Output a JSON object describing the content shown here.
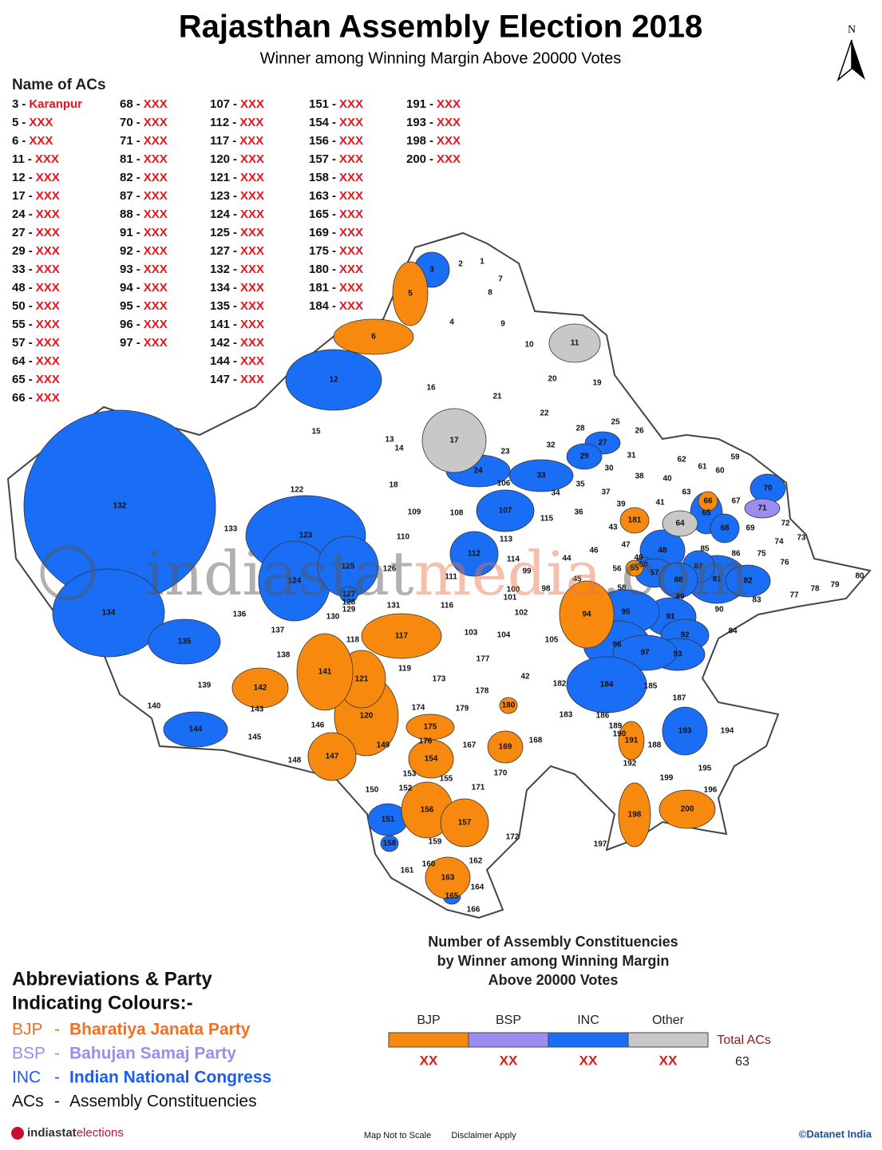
{
  "header": {
    "title": "Rajasthan Assembly Election 2018",
    "subtitle": "Winner among Winning Margin Above 20000 Votes",
    "north": "N"
  },
  "ac_list": {
    "heading": "Name of ACs",
    "separator": "-",
    "columns": [
      [
        {
          "no": 3,
          "name": "Karanpur"
        },
        {
          "no": 5,
          "name": "XXX"
        },
        {
          "no": 6,
          "name": "XXX"
        },
        {
          "no": 11,
          "name": "XXX"
        },
        {
          "no": 12,
          "name": "XXX"
        },
        {
          "no": 17,
          "name": "XXX"
        },
        {
          "no": 24,
          "name": "XXX"
        },
        {
          "no": 27,
          "name": "XXX"
        },
        {
          "no": 29,
          "name": "XXX"
        },
        {
          "no": 33,
          "name": "XXX"
        },
        {
          "no": 48,
          "name": "XXX"
        },
        {
          "no": 50,
          "name": "XXX"
        },
        {
          "no": 55,
          "name": "XXX"
        },
        {
          "no": 57,
          "name": "XXX"
        },
        {
          "no": 64,
          "name": "XXX"
        },
        {
          "no": 65,
          "name": "XXX"
        },
        {
          "no": 66,
          "name": "XXX"
        }
      ],
      [
        {
          "no": 68,
          "name": "XXX"
        },
        {
          "no": 70,
          "name": "XXX"
        },
        {
          "no": 71,
          "name": "XXX"
        },
        {
          "no": 81,
          "name": "XXX"
        },
        {
          "no": 82,
          "name": "XXX"
        },
        {
          "no": 87,
          "name": "XXX"
        },
        {
          "no": 88,
          "name": "XXX"
        },
        {
          "no": 91,
          "name": "XXX"
        },
        {
          "no": 92,
          "name": "XXX"
        },
        {
          "no": 93,
          "name": "XXX"
        },
        {
          "no": 94,
          "name": "XXX"
        },
        {
          "no": 95,
          "name": "XXX"
        },
        {
          "no": 96,
          "name": "XXX"
        },
        {
          "no": 97,
          "name": "XXX"
        }
      ],
      [
        {
          "no": 107,
          "name": "XXX"
        },
        {
          "no": 112,
          "name": "XXX"
        },
        {
          "no": 117,
          "name": "XXX"
        },
        {
          "no": 120,
          "name": "XXX"
        },
        {
          "no": 121,
          "name": "XXX"
        },
        {
          "no": 123,
          "name": "XXX"
        },
        {
          "no": 124,
          "name": "XXX"
        },
        {
          "no": 125,
          "name": "XXX"
        },
        {
          "no": 127,
          "name": "XXX"
        },
        {
          "no": 132,
          "name": "XXX"
        },
        {
          "no": 134,
          "name": "XXX"
        },
        {
          "no": 135,
          "name": "XXX"
        },
        {
          "no": 141,
          "name": "XXX"
        },
        {
          "no": 142,
          "name": "XXX"
        },
        {
          "no": 144,
          "name": "XXX"
        },
        {
          "no": 147,
          "name": "XXX"
        }
      ],
      [
        {
          "no": 151,
          "name": "XXX"
        },
        {
          "no": 154,
          "name": "XXX"
        },
        {
          "no": 156,
          "name": "XXX"
        },
        {
          "no": 157,
          "name": "XXX"
        },
        {
          "no": 158,
          "name": "XXX"
        },
        {
          "no": 163,
          "name": "XXX"
        },
        {
          "no": 165,
          "name": "XXX"
        },
        {
          "no": 169,
          "name": "XXX"
        },
        {
          "no": 175,
          "name": "XXX"
        },
        {
          "no": 180,
          "name": "XXX"
        },
        {
          "no": 181,
          "name": "XXX"
        },
        {
          "no": 184,
          "name": "XXX"
        }
      ],
      [
        {
          "no": 191,
          "name": "XXX"
        },
        {
          "no": 193,
          "name": "XXX"
        },
        {
          "no": 198,
          "name": "XXX"
        },
        {
          "no": 200,
          "name": "XXX"
        }
      ]
    ]
  },
  "map": {
    "party_colors": {
      "BJP": "#f7890e",
      "BSP": "#9b8cf0",
      "INC": "#1a6ef5",
      "Other": "#c8c8c8"
    },
    "winners": [
      {
        "label": 3,
        "party": "INC"
      },
      {
        "label": 12,
        "party": "INC"
      },
      {
        "label": 24,
        "party": "INC"
      },
      {
        "label": 27,
        "party": "INC"
      },
      {
        "label": 29,
        "party": "INC"
      },
      {
        "label": 33,
        "party": "INC"
      },
      {
        "label": 48,
        "party": "INC"
      },
      {
        "label": 50,
        "party": "INC"
      },
      {
        "label": 57,
        "party": "INC"
      },
      {
        "label": 65,
        "party": "INC"
      },
      {
        "label": 68,
        "party": "INC"
      },
      {
        "label": 70,
        "party": "INC"
      },
      {
        "label": 81,
        "party": "INC"
      },
      {
        "label": 82,
        "party": "INC"
      },
      {
        "label": 87,
        "party": "INC"
      },
      {
        "label": 88,
        "party": "INC"
      },
      {
        "label": 91,
        "party": "INC"
      },
      {
        "label": 92,
        "party": "INC"
      },
      {
        "label": 93,
        "party": "INC"
      },
      {
        "label": 95,
        "party": "INC"
      },
      {
        "label": 96,
        "party": "INC"
      },
      {
        "label": 97,
        "party": "INC"
      },
      {
        "label": 107,
        "party": "INC"
      },
      {
        "label": 112,
        "party": "INC"
      },
      {
        "label": 123,
        "party": "INC"
      },
      {
        "label": 124,
        "party": "INC"
      },
      {
        "label": 125,
        "party": "INC"
      },
      {
        "label": 127,
        "party": "INC"
      },
      {
        "label": 132,
        "party": "INC"
      },
      {
        "label": 134,
        "party": "INC"
      },
      {
        "label": 135,
        "party": "INC"
      },
      {
        "label": 144,
        "party": "INC"
      },
      {
        "label": 151,
        "party": "INC"
      },
      {
        "label": 158,
        "party": "INC"
      },
      {
        "label": 165,
        "party": "INC"
      },
      {
        "label": 184,
        "party": "INC"
      },
      {
        "label": 193,
        "party": "INC"
      },
      {
        "label": 5,
        "party": "BJP"
      },
      {
        "label": 6,
        "party": "BJP"
      },
      {
        "label": 55,
        "party": "BJP"
      },
      {
        "label": 66,
        "party": "BJP"
      },
      {
        "label": 94,
        "party": "BJP"
      },
      {
        "label": 117,
        "party": "BJP"
      },
      {
        "label": 120,
        "party": "BJP"
      },
      {
        "label": 121,
        "party": "BJP"
      },
      {
        "label": 141,
        "party": "BJP"
      },
      {
        "label": 142,
        "party": "BJP"
      },
      {
        "label": 147,
        "party": "BJP"
      },
      {
        "label": 154,
        "party": "BJP"
      },
      {
        "label": 156,
        "party": "BJP"
      },
      {
        "label": 157,
        "party": "BJP"
      },
      {
        "label": 163,
        "party": "BJP"
      },
      {
        "label": 169,
        "party": "BJP"
      },
      {
        "label": 175,
        "party": "BJP"
      },
      {
        "label": 180,
        "party": "BJP"
      },
      {
        "label": 181,
        "party": "BJP"
      },
      {
        "label": 191,
        "party": "BJP"
      },
      {
        "label": 198,
        "party": "BJP"
      },
      {
        "label": 200,
        "party": "BJP"
      },
      {
        "label": 71,
        "party": "BSP"
      },
      {
        "label": 11,
        "party": "Other"
      },
      {
        "label": 17,
        "party": "Other"
      },
      {
        "label": 64,
        "party": "Other"
      }
    ],
    "other_labels": [
      1,
      2,
      4,
      7,
      8,
      9,
      10,
      13,
      14,
      15,
      16,
      18,
      19,
      20,
      21,
      22,
      23,
      25,
      26,
      28,
      30,
      31,
      32,
      34,
      35,
      36,
      37,
      38,
      39,
      40,
      41,
      42,
      43,
      44,
      45,
      46,
      47,
      49,
      56,
      58,
      59,
      60,
      61,
      62,
      63,
      67,
      69,
      72,
      73,
      74,
      75,
      76,
      77,
      78,
      79,
      80,
      83,
      84,
      85,
      86,
      89,
      90,
      98,
      99,
      100,
      101,
      102,
      103,
      104,
      105,
      106,
      108,
      109,
      110,
      111,
      113,
      114,
      115,
      116,
      118,
      119,
      122,
      126,
      128,
      129,
      130,
      131,
      133,
      136,
      137,
      138,
      139,
      140,
      143,
      145,
      146,
      148,
      149,
      150,
      152,
      153,
      155,
      159,
      160,
      161,
      162,
      164,
      166,
      167,
      168,
      170,
      171,
      172,
      173,
      174,
      176,
      177,
      178,
      179,
      182,
      183,
      185,
      186,
      187,
      188,
      189,
      190,
      192,
      194,
      195,
      196,
      197,
      199
    ],
    "watermark": [
      "indiastat",
      "media",
      ".com"
    ]
  },
  "summary": {
    "title": [
      "Number of Assembly Constituencies",
      "by Winner among Winning Margin",
      "Above 20000 Votes"
    ],
    "parties": [
      {
        "name": "BJP",
        "color": "#f7890e",
        "count_label": "XX"
      },
      {
        "name": "BSP",
        "color": "#9b8cf0",
        "count_label": "XX"
      },
      {
        "name": "INC",
        "color": "#1a6ef5",
        "count_label": "XX"
      },
      {
        "name": "Other",
        "color": "#c8c8c8",
        "count_label": "XX"
      }
    ],
    "total_label": "Total ACs",
    "total": 63
  },
  "abbreviations": {
    "heading": [
      "Abbreviations & Party",
      "Indicating Colours:-"
    ],
    "items": [
      {
        "abbr": "BJP",
        "separator": "-",
        "full": "Bharatiya Janata Party",
        "color": "#f26f21"
      },
      {
        "abbr": "BSP",
        "separator": "-",
        "full": "Bahujan Samaj Party",
        "color": "#9b8cf0"
      },
      {
        "abbr": "INC",
        "separator": "-",
        "full": "Indian National Congress",
        "color": "#1a5cf0"
      },
      {
        "abbr": "ACs",
        "separator": "-",
        "full": "Assembly Constituencies",
        "color": "#111111"
      }
    ]
  },
  "footer": {
    "brand": [
      "indiastat",
      "elections"
    ],
    "scale_note": "Map Not to Scale",
    "disclaimer": "Disclaimer Apply",
    "copyright": "©Datanet India"
  }
}
